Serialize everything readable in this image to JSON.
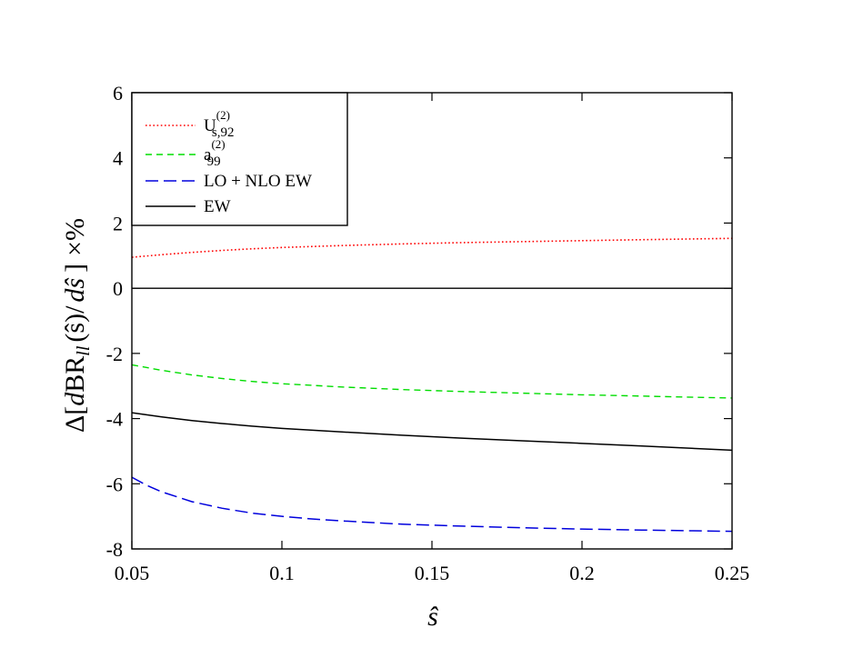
{
  "chart_data": {
    "type": "line",
    "xlabel": "ŝ",
    "ylabel": {
      "delta": "Δ",
      "open_bracket": "[",
      "d1": "d",
      "br": "BR",
      "sub": "ll",
      "arg": "(ŝ)/",
      "d2": "d",
      "shat": "ŝ",
      "close_bracket": "]",
      "times": "×",
      "percent": "%"
    },
    "xlim": [
      0.05,
      0.25
    ],
    "ylim": [
      -8,
      6
    ],
    "xticks": [
      0.05,
      0.1,
      0.15,
      0.2,
      0.25
    ],
    "yticks": [
      -8,
      -6,
      -4,
      -2,
      0,
      2,
      4,
      6
    ],
    "legend_position": "top-left",
    "series": [
      {
        "id": "us92",
        "name_main": "U",
        "name_sup": "(2)",
        "name_sub": "s,92",
        "color": "#ff0000",
        "style": "dotted",
        "x": [
          0.05,
          0.06,
          0.07,
          0.08,
          0.09,
          0.1,
          0.12,
          0.14,
          0.16,
          0.18,
          0.2,
          0.22,
          0.25
        ],
        "y": [
          0.95,
          1.03,
          1.1,
          1.16,
          1.21,
          1.25,
          1.31,
          1.36,
          1.4,
          1.43,
          1.46,
          1.49,
          1.53
        ]
      },
      {
        "id": "a99",
        "name_main": "a",
        "name_sup": "(2)",
        "name_sub": "99",
        "color": "#00dd00",
        "style": "dashed",
        "x": [
          0.05,
          0.06,
          0.07,
          0.08,
          0.09,
          0.1,
          0.12,
          0.14,
          0.16,
          0.18,
          0.2,
          0.22,
          0.25
        ],
        "y": [
          -2.35,
          -2.52,
          -2.66,
          -2.77,
          -2.86,
          -2.93,
          -3.03,
          -3.11,
          -3.17,
          -3.22,
          -3.27,
          -3.31,
          -3.37
        ]
      },
      {
        "id": "lonlo",
        "name_main": "LO + NLO EW",
        "name_sup": "",
        "name_sub": "",
        "color": "#0000dd",
        "style": "longdash",
        "x": [
          0.05,
          0.055,
          0.06,
          0.07,
          0.08,
          0.09,
          0.1,
          0.11,
          0.12,
          0.14,
          0.16,
          0.18,
          0.2,
          0.22,
          0.25
        ],
        "y": [
          -5.8,
          -6.05,
          -6.25,
          -6.55,
          -6.75,
          -6.9,
          -7.0,
          -7.08,
          -7.14,
          -7.24,
          -7.3,
          -7.35,
          -7.39,
          -7.42,
          -7.46
        ]
      },
      {
        "id": "ew",
        "name_main": "EW",
        "name_sup": "",
        "name_sub": "",
        "color": "#000000",
        "style": "solid",
        "x": [
          0.05,
          0.06,
          0.07,
          0.08,
          0.09,
          0.1,
          0.12,
          0.14,
          0.16,
          0.18,
          0.2,
          0.22,
          0.25
        ],
        "y": [
          -3.82,
          -3.95,
          -4.06,
          -4.15,
          -4.23,
          -4.3,
          -4.41,
          -4.51,
          -4.6,
          -4.68,
          -4.76,
          -4.84,
          -4.97
        ]
      }
    ],
    "reference_lines": [
      {
        "id": "zero-line",
        "y": 0,
        "color": "#000000"
      }
    ]
  }
}
